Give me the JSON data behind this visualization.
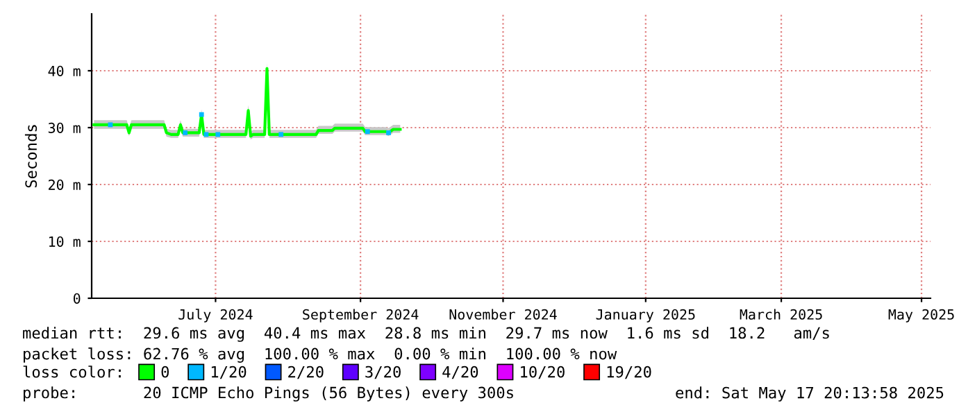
{
  "chart_data": {
    "type": "line",
    "ylabel": "Seconds",
    "xlim": [
      "2024-05-24",
      "2025-05-17T20:14"
    ],
    "xticks": [
      {
        "value": "2024-07-16",
        "label": "July 2024"
      },
      {
        "value": "2024-09-16",
        "label": "September 2024"
      },
      {
        "value": "2024-11-16",
        "label": "November 2024"
      },
      {
        "value": "2025-01-16",
        "label": "January 2025"
      },
      {
        "value": "2025-03-15",
        "label": "March 2025"
      },
      {
        "value": "2025-05-14",
        "label": "May 2025"
      }
    ],
    "ylim": [
      0,
      50
    ],
    "yticks": [
      0,
      {
        "value": 10,
        "label": "10 m"
      },
      {
        "value": 20,
        "label": "20 m"
      },
      {
        "value": 30,
        "label": "30 m"
      },
      {
        "value": 40,
        "label": "40 m"
      }
    ],
    "grid": true,
    "legend": "bottom",
    "legend_title": "loss color:",
    "series": [
      {
        "name": "0",
        "color": "#00ff00",
        "x": [
          "2024-05-25",
          "2024-06-08",
          "2024-06-09",
          "2024-06-10",
          "2024-06-24",
          "2024-06-25",
          "2024-06-27",
          "2024-06-30",
          "2024-07-01",
          "2024-07-02",
          "2024-07-09",
          "2024-07-10",
          "2024-07-11",
          "2024-07-29",
          "2024-07-30",
          "2024-07-31",
          "2024-08-01",
          "2024-08-06",
          "2024-08-07",
          "2024-08-08",
          "2024-08-28",
          "2024-08-29",
          "2024-09-04",
          "2024-09-05",
          "2024-09-17",
          "2024-09-18",
          "2024-09-27",
          "2024-09-28",
          "2024-09-30",
          "2024-10-03"
        ],
        "values": [
          30.5,
          30.5,
          29.1,
          30.5,
          30.5,
          29.1,
          28.8,
          28.8,
          30.5,
          29.1,
          29.1,
          32.3,
          28.8,
          28.8,
          33.0,
          28.5,
          28.8,
          28.8,
          40.4,
          28.8,
          28.8,
          29.5,
          29.5,
          29.9,
          29.9,
          29.3,
          29.3,
          29.1,
          29.7,
          29.7
        ],
        "lower": [
          29.8,
          29.8,
          28.5,
          29.8,
          29.8,
          28.4,
          28.2,
          28.2,
          29.8,
          28.4,
          28.4,
          31.6,
          28.2,
          28.2,
          32.2,
          27.9,
          28.2,
          28.2,
          39.6,
          28.2,
          28.2,
          28.9,
          28.9,
          29.3,
          29.3,
          28.7,
          28.7,
          28.5,
          29.1,
          29.1
        ],
        "upper": [
          31.3,
          31.3,
          29.9,
          31.3,
          31.3,
          29.8,
          29.6,
          29.6,
          31.3,
          29.8,
          29.8,
          33.2,
          29.6,
          29.6,
          34.0,
          29.3,
          29.6,
          29.6,
          41.4,
          29.6,
          29.6,
          30.3,
          30.3,
          30.7,
          30.7,
          30.1,
          30.1,
          29.9,
          30.5,
          30.5
        ]
      },
      {
        "name": "1/20",
        "type": "scatter",
        "color": "#00b8ff",
        "marker": "square",
        "x": [
          "2024-06-01",
          "2024-07-03",
          "2024-07-10",
          "2024-07-12",
          "2024-07-17",
          "2024-08-13",
          "2024-09-19",
          "2024-09-28"
        ],
        "values": [
          30.5,
          29.1,
          32.3,
          28.8,
          28.8,
          28.8,
          29.3,
          29.1
        ]
      },
      {
        "name": "2/20",
        "type": "scatter",
        "color": "#0059ff",
        "marker": "square"
      },
      {
        "name": "3/20",
        "type": "scatter",
        "color": "#5e00ff",
        "marker": "square"
      },
      {
        "name": "4/20",
        "type": "scatter",
        "color": "#7e00ff",
        "marker": "square"
      },
      {
        "name": "10/20",
        "type": "scatter",
        "color": "#dd00ff",
        "marker": "square"
      },
      {
        "name": "19/20",
        "type": "scatter",
        "color": "#ff0000",
        "marker": "square"
      }
    ],
    "annotations": [
      "median rtt:  29.6 ms avg  40.4 ms max  28.8 ms min  29.7 ms now  1.6 ms sd  18.2   am/s",
      "packet loss: 62.76 % avg  100.00 % max  0.00 % min  100.00 % now",
      "probe:       20 ICMP Echo Pings (56 Bytes) every 300s",
      "end: Sat May 17 20:13:58 2025"
    ]
  }
}
